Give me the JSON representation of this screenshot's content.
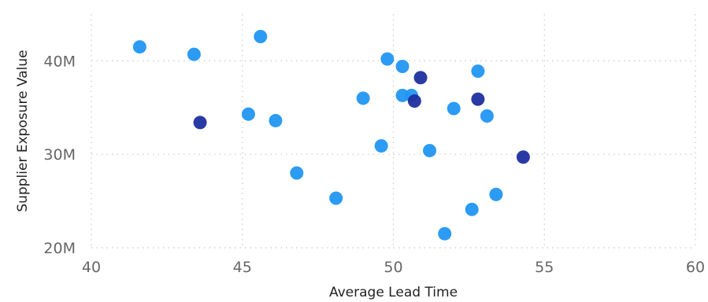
{
  "chart_data": {
    "type": "scatter",
    "title": "",
    "xlabel": "Average Lead Time",
    "ylabel": "Supplier Exposure Value",
    "xlim": [
      40,
      60
    ],
    "ylim": [
      20000000,
      45000000
    ],
    "x_ticks": [
      40,
      45,
      50,
      55,
      60
    ],
    "y_ticks": [
      {
        "value": 20000000,
        "label": "20M"
      },
      {
        "value": 30000000,
        "label": "30M"
      },
      {
        "value": 40000000,
        "label": "40M"
      }
    ],
    "grid": true,
    "legend": "none",
    "colors": {
      "light": "#2196f3",
      "dark": "#1f2f9f"
    },
    "series": [
      {
        "color_key": "light",
        "points": [
          {
            "x": 41.6,
            "y": 41500000
          },
          {
            "x": 43.4,
            "y": 40700000
          },
          {
            "x": 45.6,
            "y": 42600000
          },
          {
            "x": 45.2,
            "y": 34300000
          },
          {
            "x": 46.1,
            "y": 33600000
          },
          {
            "x": 46.8,
            "y": 28000000
          },
          {
            "x": 48.1,
            "y": 25300000
          },
          {
            "x": 49.0,
            "y": 36000000
          },
          {
            "x": 49.6,
            "y": 30900000
          },
          {
            "x": 49.8,
            "y": 40200000
          },
          {
            "x": 50.3,
            "y": 39400000
          },
          {
            "x": 50.3,
            "y": 36300000
          },
          {
            "x": 50.6,
            "y": 36300000
          },
          {
            "x": 51.2,
            "y": 30400000
          },
          {
            "x": 51.7,
            "y": 21500000
          },
          {
            "x": 52.0,
            "y": 34900000
          },
          {
            "x": 52.6,
            "y": 24100000
          },
          {
            "x": 52.8,
            "y": 38900000
          },
          {
            "x": 53.1,
            "y": 34100000
          },
          {
            "x": 53.4,
            "y": 25700000
          }
        ]
      },
      {
        "color_key": "dark",
        "points": [
          {
            "x": 43.6,
            "y": 33400000
          },
          {
            "x": 50.7,
            "y": 35700000
          },
          {
            "x": 50.9,
            "y": 38200000
          },
          {
            "x": 52.8,
            "y": 35900000
          },
          {
            "x": 54.3,
            "y": 29700000
          }
        ]
      }
    ]
  }
}
